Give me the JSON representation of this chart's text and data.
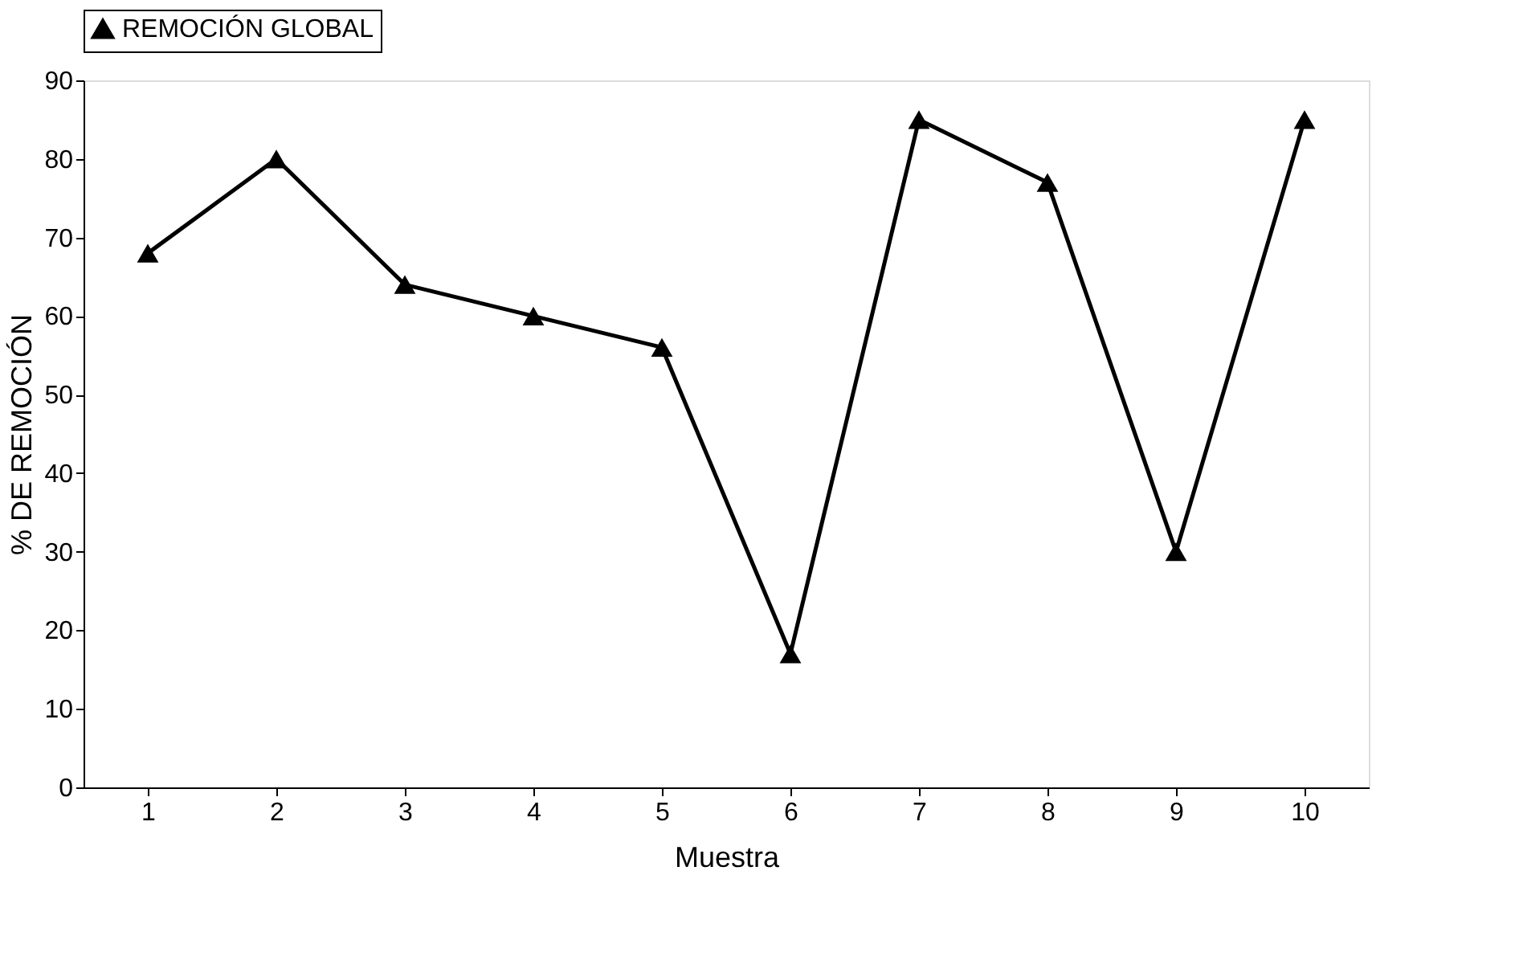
{
  "chart_data": {
    "type": "line",
    "xlabel": "Muestra",
    "ylabel": "% DE REMOCIÓN",
    "categories": [
      "1",
      "2",
      "3",
      "4",
      "5",
      "6",
      "7",
      "8",
      "9",
      "10"
    ],
    "series": [
      {
        "name": "REMOCIÓN GLOBAL",
        "color": "#000000",
        "values": [
          68,
          80,
          64,
          60,
          56,
          17,
          85,
          77,
          30,
          85
        ]
      }
    ],
    "ylim": [
      0,
      90
    ],
    "yticks": [
      0,
      10,
      20,
      30,
      40,
      50,
      60,
      70,
      80,
      90
    ],
    "grid": false,
    "legend": "top",
    "marker": "triangle",
    "line_style": "solid"
  }
}
